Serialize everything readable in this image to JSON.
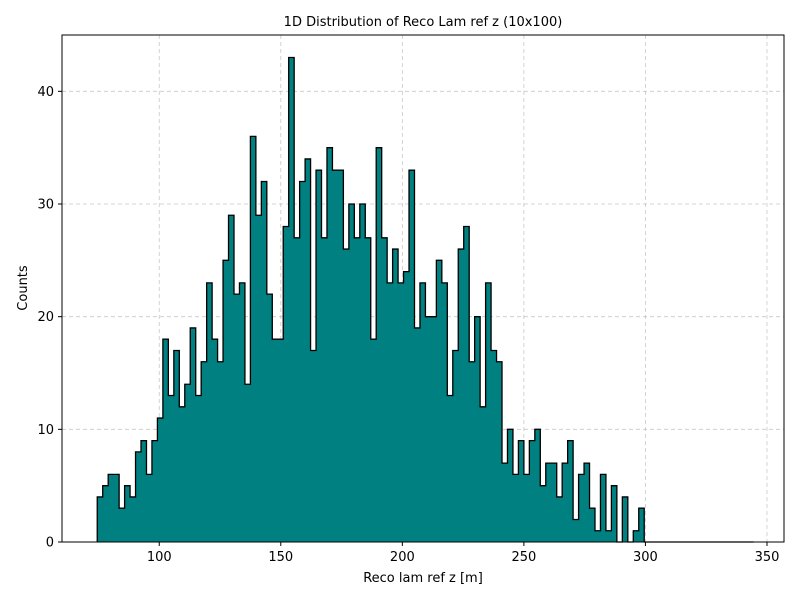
{
  "chart_data": {
    "type": "bar",
    "subtype": "histogram-step",
    "title": "1D Distribution of Reco Lam ref z (10x100)",
    "xlabel": "Reco lam ref z [m]",
    "ylabel": "Counts",
    "xlim": [
      60,
      357
    ],
    "ylim": [
      0,
      45
    ],
    "xticks": [
      100,
      150,
      200,
      250,
      300,
      350
    ],
    "yticks": [
      0,
      10,
      20,
      30,
      40
    ],
    "grid": true,
    "fill_color": "#008080",
    "edge_color": "#000000",
    "bin_edges": [
      74.5,
      344.5
    ],
    "bin_width": 2.25,
    "values": [
      4,
      5,
      6,
      6,
      3,
      5,
      4,
      8,
      9,
      6,
      9,
      11,
      18,
      13,
      17,
      12,
      14,
      19,
      13,
      16,
      23,
      18,
      16,
      25,
      29,
      22,
      23,
      14,
      36,
      29,
      32,
      22,
      18,
      18,
      28,
      43,
      27,
      32,
      34,
      17,
      33,
      27,
      35,
      33,
      33,
      26,
      30,
      27,
      30,
      27,
      18,
      35,
      27,
      23,
      26,
      23,
      24,
      33,
      19,
      23,
      20,
      20,
      25,
      23,
      13,
      17,
      26,
      28,
      16,
      20,
      12,
      23,
      17,
      16,
      7,
      10,
      6,
      9,
      6,
      9,
      10,
      5,
      7,
      7,
      4,
      7,
      9,
      2,
      6,
      7,
      3,
      1,
      6,
      1,
      5,
      0,
      4,
      0,
      1,
      3,
      0,
      0,
      0,
      0,
      0,
      0,
      0,
      0,
      0,
      0,
      0,
      0,
      0,
      0,
      0,
      0,
      0,
      0,
      0,
      0
    ]
  }
}
